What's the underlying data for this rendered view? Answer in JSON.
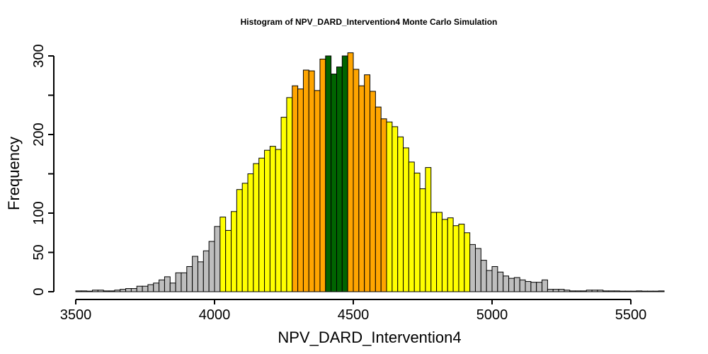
{
  "chart_data": {
    "type": "bar",
    "title": "Histogram of  NPV_DARD_Intervention4  Monte Carlo Simulation",
    "xlabel": "NPV_DARD_Intervention4",
    "ylabel": "Frequency",
    "xlim": [
      3500,
      5620
    ],
    "ylim": [
      0,
      300
    ],
    "x_ticks": [
      3500,
      4000,
      4500,
      5000,
      5500
    ],
    "x_tick_labels": [
      "3500",
      "4000",
      "4500",
      "5000",
      "5500"
    ],
    "y_ticks": [
      0,
      50,
      100,
      200,
      300
    ],
    "y_tick_labels": [
      "0",
      "50",
      "100",
      "200",
      "300"
    ],
    "bin_width": 20,
    "bins": [
      {
        "x0": 3500,
        "count": 1,
        "color": "#bebebe"
      },
      {
        "x0": 3520,
        "count": 1,
        "color": "#bebebe"
      },
      {
        "x0": 3540,
        "count": 0,
        "color": "#bebebe"
      },
      {
        "x0": 3560,
        "count": 2,
        "color": "#bebebe"
      },
      {
        "x0": 3580,
        "count": 2,
        "color": "#bebebe"
      },
      {
        "x0": 3600,
        "count": 1,
        "color": "#bebebe"
      },
      {
        "x0": 3620,
        "count": 1,
        "color": "#bebebe"
      },
      {
        "x0": 3640,
        "count": 2,
        "color": "#bebebe"
      },
      {
        "x0": 3660,
        "count": 3,
        "color": "#bebebe"
      },
      {
        "x0": 3680,
        "count": 4,
        "color": "#bebebe"
      },
      {
        "x0": 3700,
        "count": 4,
        "color": "#bebebe"
      },
      {
        "x0": 3720,
        "count": 7,
        "color": "#bebebe"
      },
      {
        "x0": 3740,
        "count": 7,
        "color": "#bebebe"
      },
      {
        "x0": 3760,
        "count": 9,
        "color": "#bebebe"
      },
      {
        "x0": 3780,
        "count": 11,
        "color": "#bebebe"
      },
      {
        "x0": 3800,
        "count": 15,
        "color": "#bebebe"
      },
      {
        "x0": 3820,
        "count": 19,
        "color": "#bebebe"
      },
      {
        "x0": 3840,
        "count": 11,
        "color": "#bebebe"
      },
      {
        "x0": 3860,
        "count": 24,
        "color": "#bebebe"
      },
      {
        "x0": 3880,
        "count": 24,
        "color": "#bebebe"
      },
      {
        "x0": 3900,
        "count": 32,
        "color": "#bebebe"
      },
      {
        "x0": 3920,
        "count": 45,
        "color": "#bebebe"
      },
      {
        "x0": 3940,
        "count": 38,
        "color": "#bebebe"
      },
      {
        "x0": 3960,
        "count": 52,
        "color": "#bebebe"
      },
      {
        "x0": 3980,
        "count": 64,
        "color": "#bebebe"
      },
      {
        "x0": 4000,
        "count": 83,
        "color": "#bebebe"
      },
      {
        "x0": 4020,
        "count": 95,
        "color": "#ffff00"
      },
      {
        "x0": 4040,
        "count": 78,
        "color": "#ffff00"
      },
      {
        "x0": 4060,
        "count": 102,
        "color": "#ffff00"
      },
      {
        "x0": 4080,
        "count": 130,
        "color": "#ffff00"
      },
      {
        "x0": 4100,
        "count": 138,
        "color": "#ffff00"
      },
      {
        "x0": 4120,
        "count": 150,
        "color": "#ffff00"
      },
      {
        "x0": 4140,
        "count": 163,
        "color": "#ffff00"
      },
      {
        "x0": 4160,
        "count": 170,
        "color": "#ffff00"
      },
      {
        "x0": 4180,
        "count": 180,
        "color": "#ffff00"
      },
      {
        "x0": 4200,
        "count": 185,
        "color": "#ffff00"
      },
      {
        "x0": 4220,
        "count": 181,
        "color": "#ffff00"
      },
      {
        "x0": 4240,
        "count": 222,
        "color": "#ffff00"
      },
      {
        "x0": 4260,
        "count": 247,
        "color": "#ffff00"
      },
      {
        "x0": 4280,
        "count": 262,
        "color": "#ffa500"
      },
      {
        "x0": 4300,
        "count": 258,
        "color": "#ffa500"
      },
      {
        "x0": 4320,
        "count": 282,
        "color": "#ffa500"
      },
      {
        "x0": 4340,
        "count": 281,
        "color": "#ffa500"
      },
      {
        "x0": 4360,
        "count": 256,
        "color": "#ffa500"
      },
      {
        "x0": 4380,
        "count": 296,
        "color": "#ffa500"
      },
      {
        "x0": 4400,
        "count": 300,
        "color": "#006400"
      },
      {
        "x0": 4420,
        "count": 277,
        "color": "#006400"
      },
      {
        "x0": 4440,
        "count": 286,
        "color": "#006400"
      },
      {
        "x0": 4460,
        "count": 300,
        "color": "#006400"
      },
      {
        "x0": 4480,
        "count": 304,
        "color": "#ffa500"
      },
      {
        "x0": 4500,
        "count": 283,
        "color": "#ffa500"
      },
      {
        "x0": 4520,
        "count": 262,
        "color": "#ffa500"
      },
      {
        "x0": 4540,
        "count": 276,
        "color": "#ffa500"
      },
      {
        "x0": 4560,
        "count": 255,
        "color": "#ffa500"
      },
      {
        "x0": 4580,
        "count": 235,
        "color": "#ffa500"
      },
      {
        "x0": 4600,
        "count": 220,
        "color": "#ffa500"
      },
      {
        "x0": 4620,
        "count": 216,
        "color": "#ffff00"
      },
      {
        "x0": 4640,
        "count": 210,
        "color": "#ffff00"
      },
      {
        "x0": 4660,
        "count": 197,
        "color": "#ffff00"
      },
      {
        "x0": 4680,
        "count": 183,
        "color": "#ffff00"
      },
      {
        "x0": 4700,
        "count": 165,
        "color": "#ffff00"
      },
      {
        "x0": 4720,
        "count": 151,
        "color": "#ffff00"
      },
      {
        "x0": 4740,
        "count": 131,
        "color": "#ffff00"
      },
      {
        "x0": 4760,
        "count": 158,
        "color": "#ffff00"
      },
      {
        "x0": 4780,
        "count": 101,
        "color": "#ffff00"
      },
      {
        "x0": 4800,
        "count": 101,
        "color": "#ffff00"
      },
      {
        "x0": 4820,
        "count": 92,
        "color": "#ffff00"
      },
      {
        "x0": 4840,
        "count": 94,
        "color": "#ffff00"
      },
      {
        "x0": 4860,
        "count": 84,
        "color": "#ffff00"
      },
      {
        "x0": 4880,
        "count": 86,
        "color": "#ffff00"
      },
      {
        "x0": 4900,
        "count": 75,
        "color": "#ffff00"
      },
      {
        "x0": 4920,
        "count": 60,
        "color": "#bebebe"
      },
      {
        "x0": 4940,
        "count": 55,
        "color": "#bebebe"
      },
      {
        "x0": 4960,
        "count": 40,
        "color": "#bebebe"
      },
      {
        "x0": 4980,
        "count": 27,
        "color": "#bebebe"
      },
      {
        "x0": 5000,
        "count": 32,
        "color": "#bebebe"
      },
      {
        "x0": 5020,
        "count": 25,
        "color": "#bebebe"
      },
      {
        "x0": 5040,
        "count": 20,
        "color": "#bebebe"
      },
      {
        "x0": 5060,
        "count": 17,
        "color": "#bebebe"
      },
      {
        "x0": 5080,
        "count": 18,
        "color": "#bebebe"
      },
      {
        "x0": 5100,
        "count": 15,
        "color": "#bebebe"
      },
      {
        "x0": 5120,
        "count": 13,
        "color": "#bebebe"
      },
      {
        "x0": 5140,
        "count": 12,
        "color": "#bebebe"
      },
      {
        "x0": 5160,
        "count": 12,
        "color": "#bebebe"
      },
      {
        "x0": 5180,
        "count": 15,
        "color": "#bebebe"
      },
      {
        "x0": 5200,
        "count": 3,
        "color": "#bebebe"
      },
      {
        "x0": 5220,
        "count": 3,
        "color": "#bebebe"
      },
      {
        "x0": 5240,
        "count": 3,
        "color": "#bebebe"
      },
      {
        "x0": 5260,
        "count": 2,
        "color": "#bebebe"
      },
      {
        "x0": 5280,
        "count": 1,
        "color": "#bebebe"
      },
      {
        "x0": 5300,
        "count": 1,
        "color": "#bebebe"
      },
      {
        "x0": 5320,
        "count": 1,
        "color": "#bebebe"
      },
      {
        "x0": 5340,
        "count": 2,
        "color": "#bebebe"
      },
      {
        "x0": 5360,
        "count": 2,
        "color": "#bebebe"
      },
      {
        "x0": 5380,
        "count": 2,
        "color": "#bebebe"
      },
      {
        "x0": 5400,
        "count": 1,
        "color": "#bebebe"
      },
      {
        "x0": 5420,
        "count": 1,
        "color": "#bebebe"
      },
      {
        "x0": 5440,
        "count": 1,
        "color": "#bebebe"
      },
      {
        "x0": 5460,
        "count": 0,
        "color": "#bebebe"
      },
      {
        "x0": 5480,
        "count": 0,
        "color": "#bebebe"
      },
      {
        "x0": 5500,
        "count": 0,
        "color": "#bebebe"
      },
      {
        "x0": 5520,
        "count": 1,
        "color": "#bebebe"
      },
      {
        "x0": 5540,
        "count": 0,
        "color": "#bebebe"
      },
      {
        "x0": 5560,
        "count": 0,
        "color": "#bebebe"
      },
      {
        "x0": 5580,
        "count": 0,
        "color": "#bebebe"
      },
      {
        "x0": 5600,
        "count": 1,
        "color": "#bebebe"
      }
    ],
    "grid": false,
    "legend": "none"
  }
}
